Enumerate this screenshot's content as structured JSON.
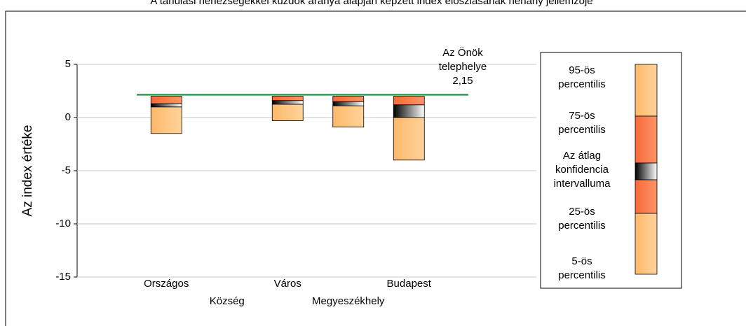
{
  "chart_data": {
    "type": "percentile-box",
    "title": "A tanulási nehézségekkel küzdők aránya alapján képzett index eloszlásának néhány jellemzője",
    "y_label": "Az index értéke",
    "categories": [
      "Országos",
      "Község",
      "Város",
      "Megyeszékhely",
      "Budapest"
    ],
    "ylim": [
      -15,
      5
    ],
    "yticks": [
      -15,
      -10,
      -5,
      0,
      5
    ],
    "grid": true,
    "percentile_95": [
      2.0,
      null,
      2.0,
      2.0,
      2.0
    ],
    "percentile_75": [
      2.0,
      null,
      2.0,
      2.0,
      2.0
    ],
    "ci_high": [
      1.3,
      null,
      1.6,
      1.5,
      1.2
    ],
    "ci_low": [
      1.0,
      null,
      1.25,
      1.1,
      0.0
    ],
    "percentile_25": [
      1.0,
      null,
      1.25,
      1.1,
      0.0
    ],
    "percentile_5": [
      -1.5,
      null,
      -0.3,
      -0.9,
      -4.0
    ],
    "light_color": "#fec57f",
    "dark_color": "#fa7f50",
    "reference": {
      "value": 2.15,
      "label": "2,15",
      "text": [
        "Az Önök",
        "telephelye"
      ],
      "color": "#2e9b4e"
    },
    "legend": [
      [
        "95-ös",
        "percentilis"
      ],
      [
        "75-ös",
        "percentilis"
      ],
      [
        "Az átlag",
        "konfidencia",
        "intervalluma"
      ],
      [
        "25-ös",
        "percentilis"
      ],
      [
        "5-ös",
        "percentilis"
      ]
    ]
  }
}
